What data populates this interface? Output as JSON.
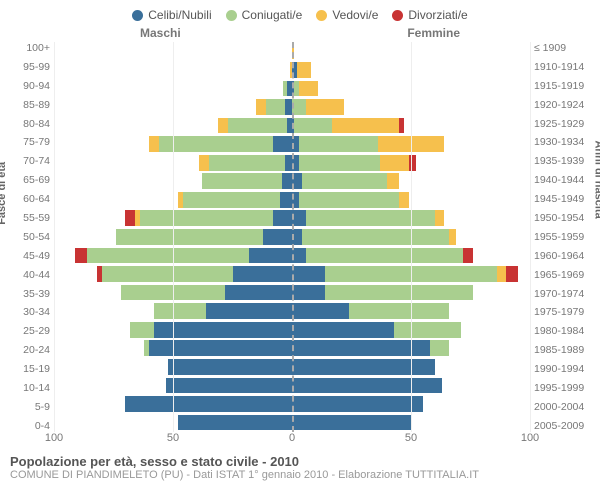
{
  "chart": {
    "type": "population-pyramid",
    "background_color": "#ffffff",
    "grid_color": "#eeeeee",
    "centerline_color": "#aaaaaa",
    "text_color_muted": "#777777",
    "text_color_subtitle": "#999999",
    "title_fontsize": 13,
    "subtitle_fontsize": 11,
    "axis_fontsize": 11,
    "tick_fontsize": 10.5,
    "bar_height_ratio": 0.85,
    "legend": [
      {
        "label": "Celibi/Nubili",
        "color": "#3a6f9a"
      },
      {
        "label": "Coniugati/e",
        "color": "#a9cf8f"
      },
      {
        "label": "Vedovi/e",
        "color": "#f6c04d"
      },
      {
        "label": "Divorziati/e",
        "color": "#c83333"
      }
    ],
    "gender_left": "Maschi",
    "gender_right": "Femmine",
    "ylabel_left": "Fasce di età",
    "ylabel_right": "Anni di nascita",
    "xmax": 100,
    "xticks": [
      100,
      50,
      0,
      50,
      100
    ],
    "age_labels": [
      "100+",
      "95-99",
      "90-94",
      "85-89",
      "80-84",
      "75-79",
      "70-74",
      "65-69",
      "60-64",
      "55-59",
      "50-54",
      "45-49",
      "40-44",
      "35-39",
      "30-34",
      "25-29",
      "20-24",
      "15-19",
      "10-14",
      "5-9",
      "0-4"
    ],
    "year_labels": [
      "≤ 1909",
      "1910-1914",
      "1915-1919",
      "1920-1924",
      "1925-1929",
      "1930-1934",
      "1935-1939",
      "1940-1944",
      "1945-1949",
      "1950-1954",
      "1955-1959",
      "1960-1964",
      "1965-1969",
      "1970-1974",
      "1975-1979",
      "1980-1984",
      "1985-1989",
      "1990-1994",
      "1995-1999",
      "2000-2004",
      "2005-2009"
    ],
    "rows": [
      {
        "m": {
          "single": 0,
          "married": 0,
          "widowed": 0,
          "divorced": 0
        },
        "f": {
          "single": 0,
          "married": 0,
          "widowed": 1,
          "divorced": 0
        }
      },
      {
        "m": {
          "single": 0,
          "married": 0,
          "widowed": 1,
          "divorced": 0
        },
        "f": {
          "single": 2,
          "married": 0,
          "widowed": 6,
          "divorced": 0
        }
      },
      {
        "m": {
          "single": 2,
          "married": 2,
          "widowed": 0,
          "divorced": 0
        },
        "f": {
          "single": 1,
          "married": 2,
          "widowed": 8,
          "divorced": 0
        }
      },
      {
        "m": {
          "single": 3,
          "married": 8,
          "widowed": 4,
          "divorced": 0
        },
        "f": {
          "single": 0,
          "married": 6,
          "widowed": 16,
          "divorced": 0
        }
      },
      {
        "m": {
          "single": 2,
          "married": 25,
          "widowed": 4,
          "divorced": 0
        },
        "f": {
          "single": 1,
          "married": 16,
          "widowed": 28,
          "divorced": 2
        }
      },
      {
        "m": {
          "single": 8,
          "married": 48,
          "widowed": 4,
          "divorced": 0
        },
        "f": {
          "single": 3,
          "married": 33,
          "widowed": 28,
          "divorced": 0
        }
      },
      {
        "m": {
          "single": 3,
          "married": 32,
          "widowed": 4,
          "divorced": 0
        },
        "f": {
          "single": 3,
          "married": 34,
          "widowed": 12,
          "divorced": 3
        }
      },
      {
        "m": {
          "single": 4,
          "married": 34,
          "widowed": 0,
          "divorced": 0
        },
        "f": {
          "single": 4,
          "married": 36,
          "widowed": 5,
          "divorced": 0
        }
      },
      {
        "m": {
          "single": 5,
          "married": 41,
          "widowed": 2,
          "divorced": 0
        },
        "f": {
          "single": 3,
          "married": 42,
          "widowed": 4,
          "divorced": 0
        }
      },
      {
        "m": {
          "single": 8,
          "married": 56,
          "widowed": 2,
          "divorced": 4
        },
        "f": {
          "single": 6,
          "married": 54,
          "widowed": 4,
          "divorced": 0
        }
      },
      {
        "m": {
          "single": 12,
          "married": 62,
          "widowed": 0,
          "divorced": 0
        },
        "f": {
          "single": 4,
          "married": 62,
          "widowed": 3,
          "divorced": 0
        }
      },
      {
        "m": {
          "single": 18,
          "married": 68,
          "widowed": 0,
          "divorced": 5
        },
        "f": {
          "single": 6,
          "married": 66,
          "widowed": 0,
          "divorced": 4
        }
      },
      {
        "m": {
          "single": 25,
          "married": 55,
          "widowed": 0,
          "divorced": 2
        },
        "f": {
          "single": 14,
          "married": 72,
          "widowed": 4,
          "divorced": 5
        }
      },
      {
        "m": {
          "single": 28,
          "married": 44,
          "widowed": 0,
          "divorced": 0
        },
        "f": {
          "single": 14,
          "married": 62,
          "widowed": 0,
          "divorced": 0
        }
      },
      {
        "m": {
          "single": 36,
          "married": 22,
          "widowed": 0,
          "divorced": 0
        },
        "f": {
          "single": 24,
          "married": 42,
          "widowed": 0,
          "divorced": 0
        }
      },
      {
        "m": {
          "single": 58,
          "married": 10,
          "widowed": 0,
          "divorced": 0
        },
        "f": {
          "single": 43,
          "married": 28,
          "widowed": 0,
          "divorced": 0
        }
      },
      {
        "m": {
          "single": 60,
          "married": 2,
          "widowed": 0,
          "divorced": 0
        },
        "f": {
          "single": 58,
          "married": 8,
          "widowed": 0,
          "divorced": 0
        }
      },
      {
        "m": {
          "single": 52,
          "married": 0,
          "widowed": 0,
          "divorced": 0
        },
        "f": {
          "single": 60,
          "married": 0,
          "widowed": 0,
          "divorced": 0
        }
      },
      {
        "m": {
          "single": 53,
          "married": 0,
          "widowed": 0,
          "divorced": 0
        },
        "f": {
          "single": 63,
          "married": 0,
          "widowed": 0,
          "divorced": 0
        }
      },
      {
        "m": {
          "single": 70,
          "married": 0,
          "widowed": 0,
          "divorced": 0
        },
        "f": {
          "single": 55,
          "married": 0,
          "widowed": 0,
          "divorced": 0
        }
      },
      {
        "m": {
          "single": 48,
          "married": 0,
          "widowed": 0,
          "divorced": 0
        },
        "f": {
          "single": 50,
          "married": 0,
          "widowed": 0,
          "divorced": 0
        }
      }
    ],
    "title": "Popolazione per età, sesso e stato civile - 2010",
    "subtitle": "COMUNE DI PIANDIMELETO (PU) - Dati ISTAT 1° gennaio 2010 - Elaborazione TUTTITALIA.IT"
  }
}
